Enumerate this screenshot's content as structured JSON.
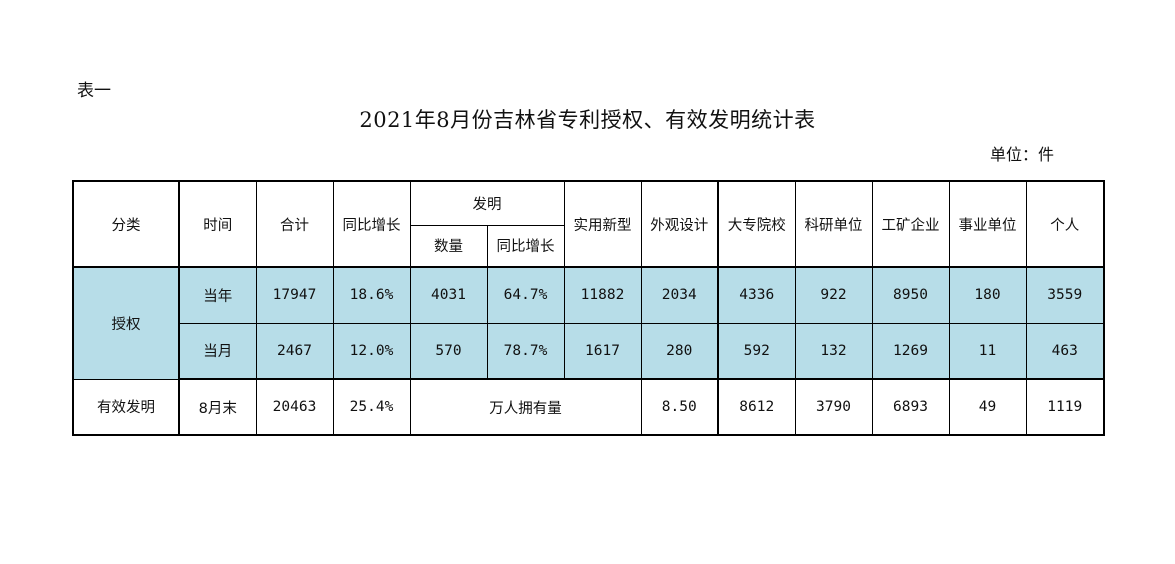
{
  "table_no": "表一",
  "title": "2021年8月份吉林省专利授权、有效发明统计表",
  "unit": "单位：件",
  "header": {
    "category": "分类",
    "time": "时间",
    "total": "合计",
    "yoy": "同比增长",
    "invention": "发明",
    "inv_count": "数量",
    "inv_yoy": "同比增长",
    "utility": "实用新型",
    "design": "外观设计",
    "colleges": "大专院校",
    "research": "科研单位",
    "industry": "工矿企业",
    "institutions": "事业单位",
    "individual": "个人"
  },
  "grant": {
    "label": "授权",
    "rows": [
      {
        "time": "当年",
        "total": "17947",
        "yoy": "18.6%",
        "inv_count": "4031",
        "inv_yoy": "64.7%",
        "utility": "11882",
        "design": "2034",
        "colleges": "4336",
        "research": "922",
        "industry": "8950",
        "institutions": "180",
        "individual": "3559"
      },
      {
        "time": "当月",
        "total": "2467",
        "yoy": "12.0%",
        "inv_count": "570",
        "inv_yoy": "78.7%",
        "utility": "1617",
        "design": "280",
        "colleges": "592",
        "research": "132",
        "industry": "1269",
        "institutions": "11",
        "individual": "463"
      }
    ]
  },
  "valid": {
    "label": "有效发明",
    "time": "8月末",
    "total": "20463",
    "yoy": "25.4%",
    "per_capita_label": "万人拥有量",
    "per_capita_value": "8.50",
    "colleges": "8612",
    "research": "3790",
    "industry": "6893",
    "institutions": "49",
    "individual": "1119"
  },
  "colors": {
    "shade": "#b7dde8"
  }
}
